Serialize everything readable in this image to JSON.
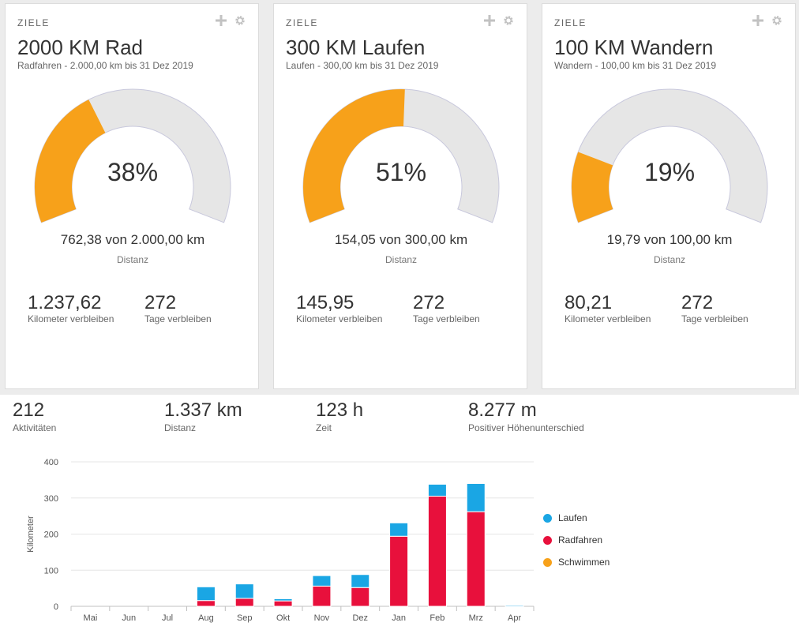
{
  "colors": {
    "progress": "#f7a11a",
    "remaining": "#e6e6e6",
    "laufen": "#1aa6e4",
    "radfahren": "#e8103c",
    "schwimmen": "#f7a11a"
  },
  "goals": [
    {
      "header": "ZIELE",
      "title": "2000 KM Rad",
      "subtitle": "Radfahren - 2.000,00 km bis 31 Dez 2019",
      "percent_label": "38%",
      "progress": 0.38,
      "value_label": "762,38 von 2.000,00 km",
      "value_caption": "Distanz",
      "remaining_km": "1.237,62",
      "remaining_km_label": "Kilometer verbleiben",
      "remaining_days": "272",
      "remaining_days_label": "Tage verbleiben"
    },
    {
      "header": "ZIELE",
      "title": "300 KM Laufen",
      "subtitle": "Laufen - 300,00 km bis 31 Dez 2019",
      "percent_label": "51%",
      "progress": 0.51,
      "value_label": "154,05 von 300,00 km",
      "value_caption": "Distanz",
      "remaining_km": "145,95",
      "remaining_km_label": "Kilometer verbleiben",
      "remaining_days": "272",
      "remaining_days_label": "Tage verbleiben"
    },
    {
      "header": "ZIELE",
      "title": "100 KM Wandern",
      "subtitle": "Wandern - 100,00 km bis 31 Dez 2019",
      "percent_label": "19%",
      "progress": 0.19,
      "value_label": "19,79 von 100,00 km",
      "value_caption": "Distanz",
      "remaining_km": "80,21",
      "remaining_km_label": "Kilometer verbleiben",
      "remaining_days": "272",
      "remaining_days_label": "Tage verbleiben"
    }
  ],
  "summary": [
    {
      "value": "212",
      "label": "Aktivitäten"
    },
    {
      "value": "1.337 km",
      "label": "Distanz"
    },
    {
      "value": "123 h",
      "label": "Zeit"
    },
    {
      "value": "8.277 m",
      "label": "Positiver Höhenunterschied"
    }
  ],
  "chart_data": {
    "type": "bar",
    "stacked": true,
    "categories": [
      "Mai",
      "Jun",
      "Jul",
      "Aug",
      "Sep",
      "Okt",
      "Nov",
      "Dez",
      "Jan",
      "Feb",
      "Mrz",
      "Apr"
    ],
    "ylabel": "Kilometer",
    "ylim": [
      0,
      400
    ],
    "yticks": [
      0,
      100,
      200,
      300,
      400
    ],
    "grid": true,
    "legend_position": "right",
    "series": [
      {
        "name": "Radfahren",
        "color": "#e8103c",
        "values": [
          0,
          0,
          0,
          16,
          22,
          15,
          56,
          52,
          194,
          305,
          262,
          0
        ]
      },
      {
        "name": "Laufen",
        "color": "#1aa6e4",
        "values": [
          0,
          0,
          0,
          38,
          40,
          6,
          29,
          36,
          37,
          33,
          78,
          3
        ]
      },
      {
        "name": "Schwimmen",
        "color": "#f7a11a",
        "values": [
          0,
          0,
          0,
          0,
          0,
          0,
          0,
          0,
          0,
          0,
          0,
          0
        ]
      }
    ],
    "legend": [
      "Laufen",
      "Radfahren",
      "Schwimmen"
    ]
  }
}
